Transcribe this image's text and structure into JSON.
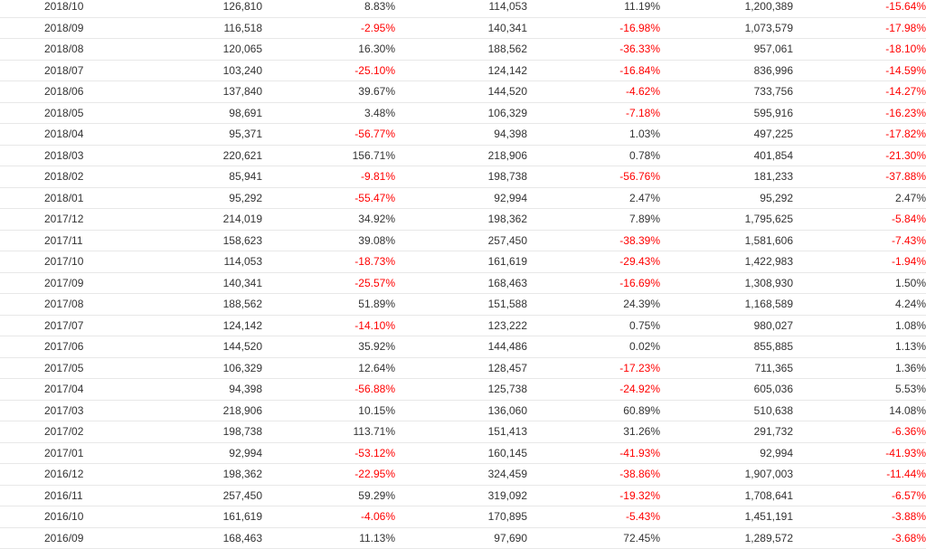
{
  "table": {
    "rows": [
      {
        "month": "2018/10",
        "monthly_sales": "126,810",
        "mom": "8.83%",
        "prev_year_sales": "114,053",
        "yoy": "11.19%",
        "cumulative": "1,200,389",
        "cum_yoy": "-15.64%"
      },
      {
        "month": "2018/09",
        "monthly_sales": "116,518",
        "mom": "-2.95%",
        "prev_year_sales": "140,341",
        "yoy": "-16.98%",
        "cumulative": "1,073,579",
        "cum_yoy": "-17.98%"
      },
      {
        "month": "2018/08",
        "monthly_sales": "120,065",
        "mom": "16.30%",
        "prev_year_sales": "188,562",
        "yoy": "-36.33%",
        "cumulative": "957,061",
        "cum_yoy": "-18.10%"
      },
      {
        "month": "2018/07",
        "monthly_sales": "103,240",
        "mom": "-25.10%",
        "prev_year_sales": "124,142",
        "yoy": "-16.84%",
        "cumulative": "836,996",
        "cum_yoy": "-14.59%"
      },
      {
        "month": "2018/06",
        "monthly_sales": "137,840",
        "mom": "39.67%",
        "prev_year_sales": "144,520",
        "yoy": "-4.62%",
        "cumulative": "733,756",
        "cum_yoy": "-14.27%"
      },
      {
        "month": "2018/05",
        "monthly_sales": "98,691",
        "mom": "3.48%",
        "prev_year_sales": "106,329",
        "yoy": "-7.18%",
        "cumulative": "595,916",
        "cum_yoy": "-16.23%"
      },
      {
        "month": "2018/04",
        "monthly_sales": "95,371",
        "mom": "-56.77%",
        "prev_year_sales": "94,398",
        "yoy": "1.03%",
        "cumulative": "497,225",
        "cum_yoy": "-17.82%"
      },
      {
        "month": "2018/03",
        "monthly_sales": "220,621",
        "mom": "156.71%",
        "prev_year_sales": "218,906",
        "yoy": "0.78%",
        "cumulative": "401,854",
        "cum_yoy": "-21.30%"
      },
      {
        "month": "2018/02",
        "monthly_sales": "85,941",
        "mom": "-9.81%",
        "prev_year_sales": "198,738",
        "yoy": "-56.76%",
        "cumulative": "181,233",
        "cum_yoy": "-37.88%"
      },
      {
        "month": "2018/01",
        "monthly_sales": "95,292",
        "mom": "-55.47%",
        "prev_year_sales": "92,994",
        "yoy": "2.47%",
        "cumulative": "95,292",
        "cum_yoy": "2.47%"
      },
      {
        "month": "2017/12",
        "monthly_sales": "214,019",
        "mom": "34.92%",
        "prev_year_sales": "198,362",
        "yoy": "7.89%",
        "cumulative": "1,795,625",
        "cum_yoy": "-5.84%"
      },
      {
        "month": "2017/11",
        "monthly_sales": "158,623",
        "mom": "39.08%",
        "prev_year_sales": "257,450",
        "yoy": "-38.39%",
        "cumulative": "1,581,606",
        "cum_yoy": "-7.43%"
      },
      {
        "month": "2017/10",
        "monthly_sales": "114,053",
        "mom": "-18.73%",
        "prev_year_sales": "161,619",
        "yoy": "-29.43%",
        "cumulative": "1,422,983",
        "cum_yoy": "-1.94%"
      },
      {
        "month": "2017/09",
        "monthly_sales": "140,341",
        "mom": "-25.57%",
        "prev_year_sales": "168,463",
        "yoy": "-16.69%",
        "cumulative": "1,308,930",
        "cum_yoy": "1.50%"
      },
      {
        "month": "2017/08",
        "monthly_sales": "188,562",
        "mom": "51.89%",
        "prev_year_sales": "151,588",
        "yoy": "24.39%",
        "cumulative": "1,168,589",
        "cum_yoy": "4.24%"
      },
      {
        "month": "2017/07",
        "monthly_sales": "124,142",
        "mom": "-14.10%",
        "prev_year_sales": "123,222",
        "yoy": "0.75%",
        "cumulative": "980,027",
        "cum_yoy": "1.08%"
      },
      {
        "month": "2017/06",
        "monthly_sales": "144,520",
        "mom": "35.92%",
        "prev_year_sales": "144,486",
        "yoy": "0.02%",
        "cumulative": "855,885",
        "cum_yoy": "1.13%"
      },
      {
        "month": "2017/05",
        "monthly_sales": "106,329",
        "mom": "12.64%",
        "prev_year_sales": "128,457",
        "yoy": "-17.23%",
        "cumulative": "711,365",
        "cum_yoy": "1.36%"
      },
      {
        "month": "2017/04",
        "monthly_sales": "94,398",
        "mom": "-56.88%",
        "prev_year_sales": "125,738",
        "yoy": "-24.92%",
        "cumulative": "605,036",
        "cum_yoy": "5.53%"
      },
      {
        "month": "2017/03",
        "monthly_sales": "218,906",
        "mom": "10.15%",
        "prev_year_sales": "136,060",
        "yoy": "60.89%",
        "cumulative": "510,638",
        "cum_yoy": "14.08%"
      },
      {
        "month": "2017/02",
        "monthly_sales": "198,738",
        "mom": "113.71%",
        "prev_year_sales": "151,413",
        "yoy": "31.26%",
        "cumulative": "291,732",
        "cum_yoy": "-6.36%"
      },
      {
        "month": "2017/01",
        "monthly_sales": "92,994",
        "mom": "-53.12%",
        "prev_year_sales": "160,145",
        "yoy": "-41.93%",
        "cumulative": "92,994",
        "cum_yoy": "-41.93%"
      },
      {
        "month": "2016/12",
        "monthly_sales": "198,362",
        "mom": "-22.95%",
        "prev_year_sales": "324,459",
        "yoy": "-38.86%",
        "cumulative": "1,907,003",
        "cum_yoy": "-11.44%"
      },
      {
        "month": "2016/11",
        "monthly_sales": "257,450",
        "mom": "59.29%",
        "prev_year_sales": "319,092",
        "yoy": "-19.32%",
        "cumulative": "1,708,641",
        "cum_yoy": "-6.57%"
      },
      {
        "month": "2016/10",
        "monthly_sales": "161,619",
        "mom": "-4.06%",
        "prev_year_sales": "170,895",
        "yoy": "-5.43%",
        "cumulative": "1,451,191",
        "cum_yoy": "-3.88%"
      },
      {
        "month": "2016/09",
        "monthly_sales": "168,463",
        "mom": "11.13%",
        "prev_year_sales": "97,690",
        "yoy": "72.45%",
        "cumulative": "1,289,572",
        "cum_yoy": "-3.68%"
      }
    ]
  },
  "colors": {
    "negative": "#ff0000",
    "text": "#333333",
    "row_border": "#e8e8e8"
  }
}
